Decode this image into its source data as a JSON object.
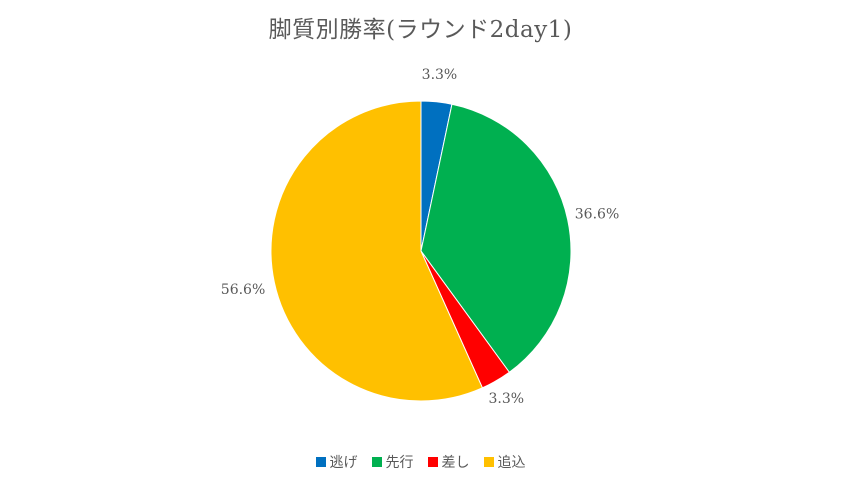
{
  "chart_data": {
    "type": "pie",
    "title": "脚質別勝率(ラウンド2day1)",
    "categories": [
      "逃げ",
      "先行",
      "差し",
      "追込"
    ],
    "values": [
      3.3,
      36.6,
      3.3,
      56.6
    ],
    "value_labels": [
      "3.3%",
      "36.6%",
      "3.3%",
      "56.6%"
    ],
    "colors": [
      "#0070C0",
      "#00B050",
      "#FF0000",
      "#FFC000"
    ],
    "start_angle_deg": 0,
    "direction": "clockwise",
    "legend_position": "bottom"
  }
}
